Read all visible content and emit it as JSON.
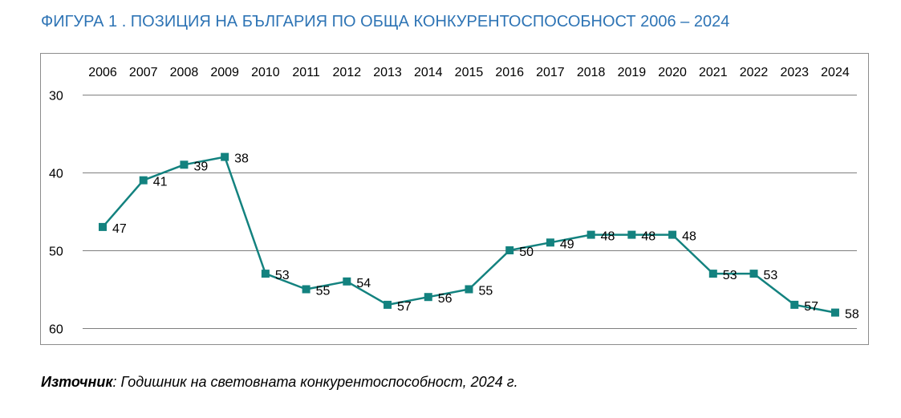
{
  "title": "ФИГУРА 1 . ПОЗИЦИЯ НА БЪЛГАРИЯ ПО ОБЩА КОНКУРЕНТОСПОСОБНОСТ 2006 – 2024",
  "source": {
    "label": "Източник",
    "separator": ":",
    "text": " Годишник на световната конкурентоспособност, 2024 г."
  },
  "colors": {
    "title": "#2E74B5",
    "series": "#13827F",
    "grid": "#7f7f7f"
  },
  "chart_data": {
    "type": "line",
    "x": [
      "2006",
      "2007",
      "2008",
      "2009",
      "2010",
      "2011",
      "2012",
      "2013",
      "2014",
      "2015",
      "2016",
      "2017",
      "2018",
      "2019",
      "2020",
      "2021",
      "2022",
      "2023",
      "2024"
    ],
    "values": [
      47,
      41,
      39,
      38,
      53,
      55,
      54,
      57,
      56,
      55,
      50,
      49,
      48,
      48,
      48,
      53,
      53,
      57,
      58
    ],
    "ylim": [
      30,
      60
    ],
    "y_ticks": [
      "30",
      "40",
      "50",
      "60"
    ],
    "y_reversed": true,
    "x_axis_position": "top",
    "grid": true,
    "marker": "square",
    "data_labels": true
  }
}
